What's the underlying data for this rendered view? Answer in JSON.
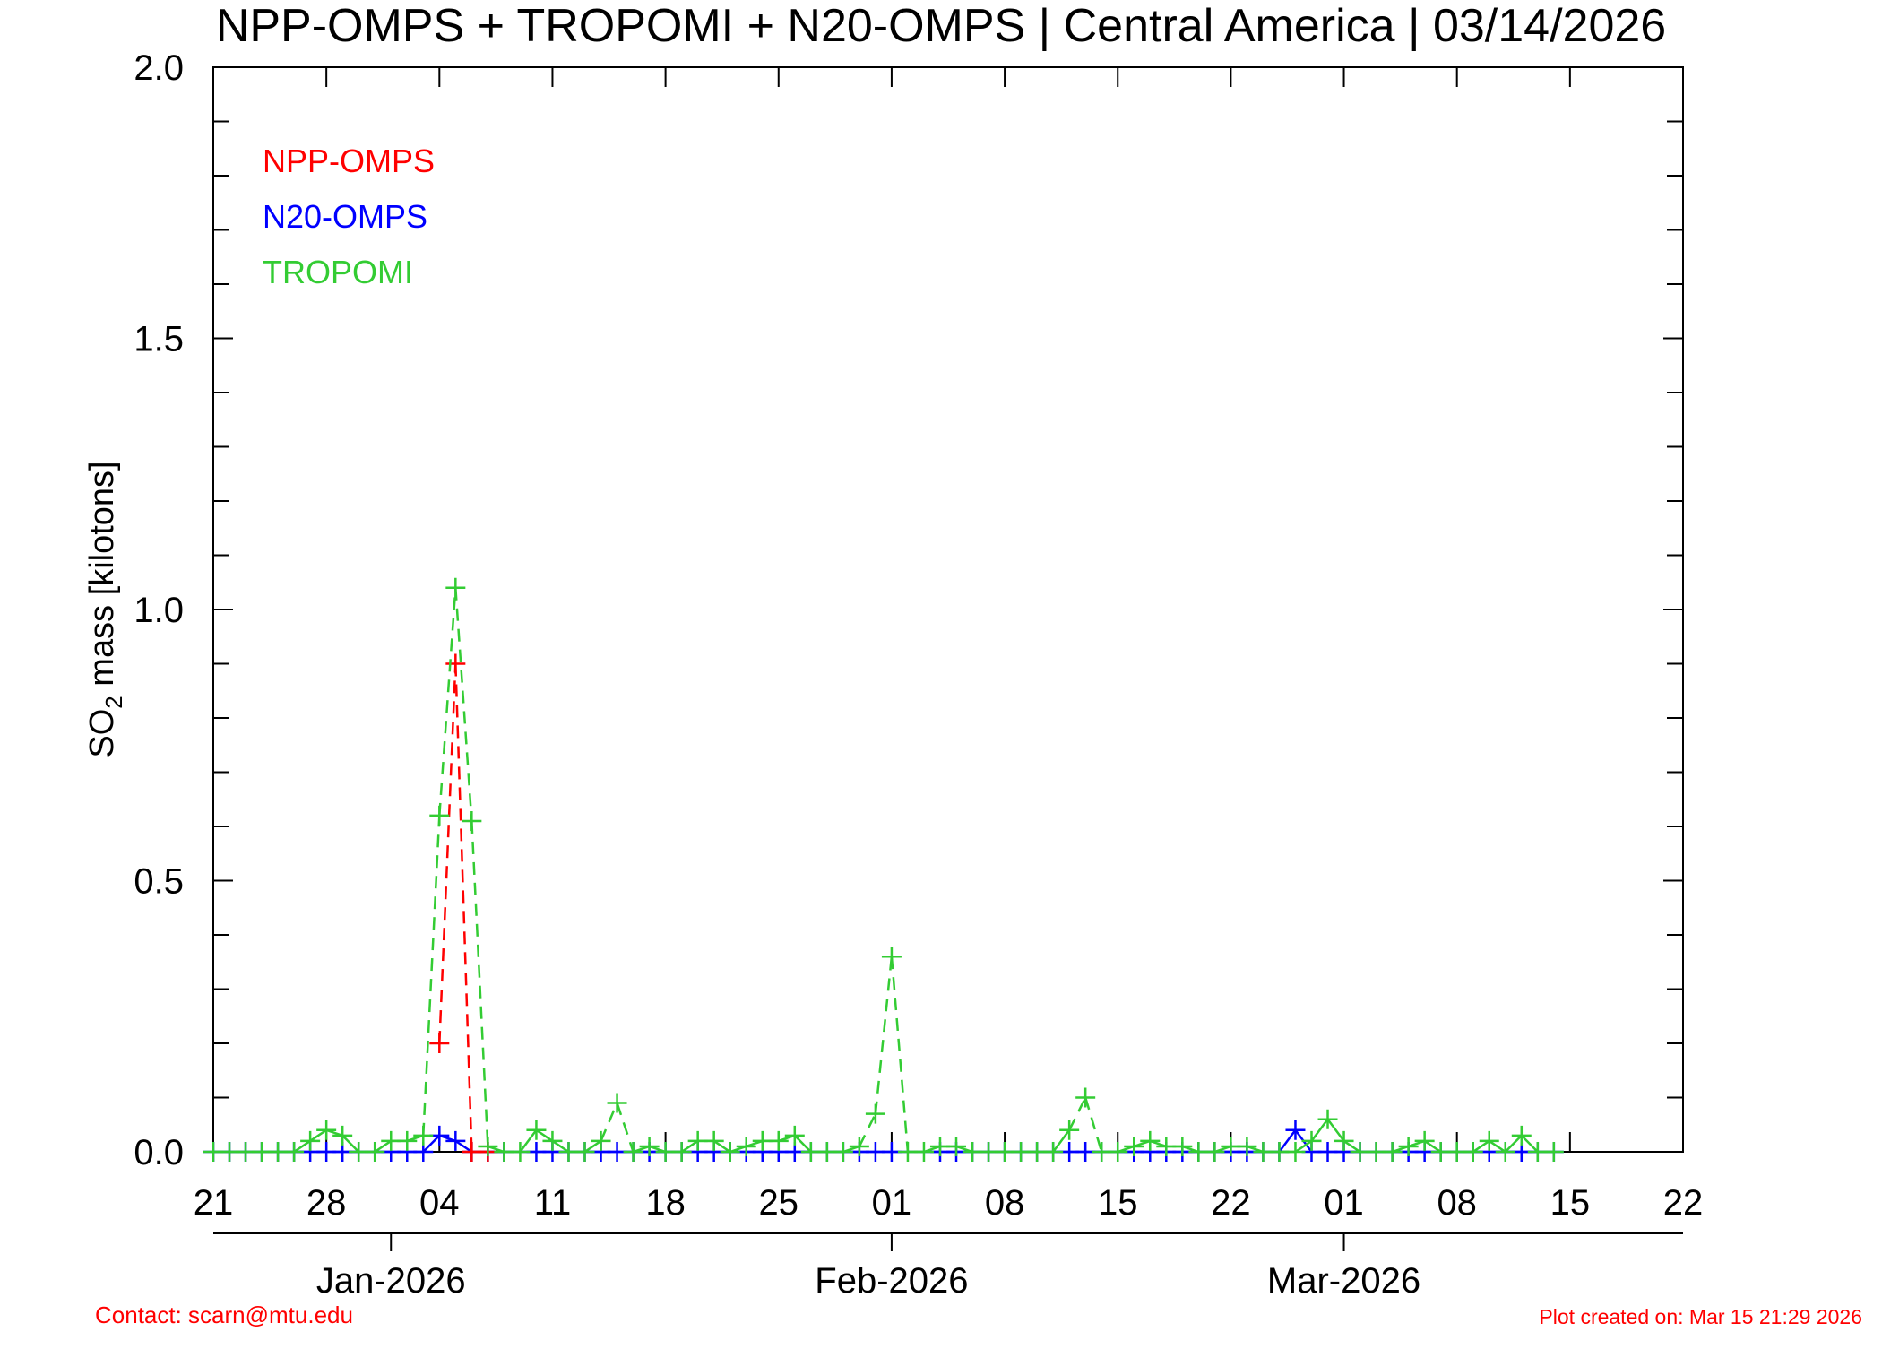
{
  "chart_data": {
    "type": "line",
    "title": "NPP-OMPS + TROPOMI + N20-OMPS | Central America | 03/14/2026",
    "ylabel_prefix": "SO",
    "ylabel_sub": "2",
    "ylabel_suffix": " mass [kilotons]",
    "ylim": [
      0.0,
      2.0
    ],
    "xlim": [
      "2025-12-21",
      "2026-03-22"
    ],
    "yticks": [
      {
        "value": 0.0,
        "label": "0.0"
      },
      {
        "value": 0.5,
        "label": "0.5"
      },
      {
        "value": 1.0,
        "label": "1.0"
      },
      {
        "value": 1.5,
        "label": "1.5"
      },
      {
        "value": 2.0,
        "label": "2.0"
      }
    ],
    "xticks": [
      {
        "date": "2025-12-21",
        "label": "21"
      },
      {
        "date": "2025-12-28",
        "label": "28"
      },
      {
        "date": "2026-01-04",
        "label": "04"
      },
      {
        "date": "2026-01-11",
        "label": "11"
      },
      {
        "date": "2026-01-18",
        "label": "18"
      },
      {
        "date": "2026-01-25",
        "label": "25"
      },
      {
        "date": "2026-02-01",
        "label": "01"
      },
      {
        "date": "2026-02-08",
        "label": "08"
      },
      {
        "date": "2026-02-15",
        "label": "15"
      },
      {
        "date": "2026-02-22",
        "label": "22"
      },
      {
        "date": "2026-03-01",
        "label": "01"
      },
      {
        "date": "2026-03-08",
        "label": "08"
      },
      {
        "date": "2026-03-15",
        "label": "15"
      },
      {
        "date": "2026-03-22",
        "label": "22"
      }
    ],
    "month_ticks": [
      {
        "date": "2026-01-01",
        "label": "Jan-2026"
      },
      {
        "date": "2026-02-01",
        "label": "Feb-2026"
      },
      {
        "date": "2026-03-01",
        "label": "Mar-2026"
      }
    ],
    "legend_position": "top-left",
    "grid": false,
    "series": [
      {
        "name": "NPP-OMPS",
        "color": "#ff0000",
        "points": [
          {
            "x": "2026-01-04",
            "y": 0.2
          },
          {
            "x": "2026-01-05",
            "y": 0.9
          },
          {
            "x": "2026-01-06",
            "y": 0.0
          },
          {
            "x": "2026-01-07",
            "y": 0.0
          }
        ]
      },
      {
        "name": "N20-OMPS",
        "color": "#0000ff",
        "points": [
          {
            "x": "2025-12-21",
            "y": 0.0
          },
          {
            "x": "2025-12-22",
            "y": 0.0
          },
          {
            "x": "2025-12-23",
            "y": 0.0
          },
          {
            "x": "2025-12-24",
            "y": 0.0
          },
          {
            "x": "2025-12-25",
            "y": 0.0
          },
          {
            "x": "2025-12-26",
            "y": 0.0
          },
          {
            "x": "2025-12-27",
            "y": 0.0
          },
          {
            "x": "2025-12-28",
            "y": 0.0
          },
          {
            "x": "2025-12-29",
            "y": 0.0
          },
          {
            "x": "2025-12-30",
            "y": 0.0
          },
          {
            "x": "2025-12-31",
            "y": 0.0
          },
          {
            "x": "2026-01-01",
            "y": 0.0
          },
          {
            "x": "2026-01-02",
            "y": 0.0
          },
          {
            "x": "2026-01-03",
            "y": 0.0
          },
          {
            "x": "2026-01-04",
            "y": 0.03
          },
          {
            "x": "2026-01-05",
            "y": 0.02
          },
          {
            "x": "2026-01-06",
            "y": 0.0
          },
          {
            "x": "2026-01-07",
            "y": 0.0
          },
          {
            "x": "2026-01-08",
            "y": 0.0
          },
          {
            "x": "2026-01-10",
            "y": 0.0
          },
          {
            "x": "2026-01-11",
            "y": 0.0
          },
          {
            "x": "2026-01-12",
            "y": 0.0
          },
          {
            "x": "2026-01-13",
            "y": 0.0
          },
          {
            "x": "2026-01-14",
            "y": 0.0
          },
          {
            "x": "2026-01-15",
            "y": 0.0
          },
          {
            "x": "2026-01-16",
            "y": 0.0
          },
          {
            "x": "2026-01-17",
            "y": 0.0
          },
          {
            "x": "2026-01-18",
            "y": 0.0
          },
          {
            "x": "2026-01-19",
            "y": 0.0
          },
          {
            "x": "2026-01-20",
            "y": 0.0
          },
          {
            "x": "2026-01-21",
            "y": 0.0
          },
          {
            "x": "2026-01-22",
            "y": 0.0
          },
          {
            "x": "2026-01-23",
            "y": 0.0
          },
          {
            "x": "2026-01-24",
            "y": 0.0
          },
          {
            "x": "2026-01-25",
            "y": 0.0
          },
          {
            "x": "2026-01-26",
            "y": 0.0
          },
          {
            "x": "2026-01-27",
            "y": 0.0
          },
          {
            "x": "2026-01-28",
            "y": 0.0
          },
          {
            "x": "2026-01-29",
            "y": 0.0
          },
          {
            "x": "2026-01-30",
            "y": 0.0
          },
          {
            "x": "2026-01-31",
            "y": 0.0
          },
          {
            "x": "2026-02-01",
            "y": 0.0
          },
          {
            "x": "2026-02-04",
            "y": 0.0
          },
          {
            "x": "2026-02-05",
            "y": 0.0
          },
          {
            "x": "2026-02-06",
            "y": 0.0
          },
          {
            "x": "2026-02-07",
            "y": 0.0
          },
          {
            "x": "2026-02-08",
            "y": 0.0
          },
          {
            "x": "2026-02-09",
            "y": 0.0
          },
          {
            "x": "2026-02-10",
            "y": 0.0
          },
          {
            "x": "2026-02-11",
            "y": 0.0
          },
          {
            "x": "2026-02-12",
            "y": 0.0
          },
          {
            "x": "2026-02-13",
            "y": 0.0
          },
          {
            "x": "2026-02-14",
            "y": 0.0
          },
          {
            "x": "2026-02-15",
            "y": 0.0
          },
          {
            "x": "2026-02-16",
            "y": 0.0
          },
          {
            "x": "2026-02-17",
            "y": 0.0
          },
          {
            "x": "2026-02-18",
            "y": 0.0
          },
          {
            "x": "2026-02-19",
            "y": 0.0
          },
          {
            "x": "2026-02-20",
            "y": 0.0
          },
          {
            "x": "2026-02-21",
            "y": 0.0
          },
          {
            "x": "2026-02-22",
            "y": 0.0
          },
          {
            "x": "2026-02-23",
            "y": 0.0
          },
          {
            "x": "2026-02-24",
            "y": 0.0
          },
          {
            "x": "2026-02-25",
            "y": 0.0
          },
          {
            "x": "2026-02-26",
            "y": 0.04
          },
          {
            "x": "2026-02-27",
            "y": 0.0
          },
          {
            "x": "2026-02-28",
            "y": 0.0
          },
          {
            "x": "2026-03-01",
            "y": 0.0
          },
          {
            "x": "2026-03-02",
            "y": 0.0
          },
          {
            "x": "2026-03-03",
            "y": 0.0
          },
          {
            "x": "2026-03-04",
            "y": 0.0
          },
          {
            "x": "2026-03-05",
            "y": 0.0
          },
          {
            "x": "2026-03-06",
            "y": 0.0
          },
          {
            "x": "2026-03-07",
            "y": 0.0
          },
          {
            "x": "2026-03-08",
            "y": 0.0
          },
          {
            "x": "2026-03-09",
            "y": 0.0
          },
          {
            "x": "2026-03-10",
            "y": 0.0
          },
          {
            "x": "2026-03-11",
            "y": 0.0
          },
          {
            "x": "2026-03-12",
            "y": 0.0
          },
          {
            "x": "2026-03-13",
            "y": 0.0
          },
          {
            "x": "2026-03-14",
            "y": 0.0
          }
        ]
      },
      {
        "name": "TROPOMI",
        "color": "#33cc33",
        "points": [
          {
            "x": "2025-12-21",
            "y": 0.0
          },
          {
            "x": "2025-12-22",
            "y": 0.0
          },
          {
            "x": "2025-12-23",
            "y": 0.0
          },
          {
            "x": "2025-12-24",
            "y": 0.0
          },
          {
            "x": "2025-12-25",
            "y": 0.0
          },
          {
            "x": "2025-12-26",
            "y": 0.0
          },
          {
            "x": "2025-12-27",
            "y": 0.02
          },
          {
            "x": "2025-12-28",
            "y": 0.04
          },
          {
            "x": "2025-12-29",
            "y": 0.03
          },
          {
            "x": "2025-12-30",
            "y": 0.0
          },
          {
            "x": "2025-12-31",
            "y": 0.0
          },
          {
            "x": "2026-01-01",
            "y": 0.02
          },
          {
            "x": "2026-01-02",
            "y": 0.02
          },
          {
            "x": "2026-01-03",
            "y": 0.03
          },
          {
            "x": "2026-01-04",
            "y": 0.62
          },
          {
            "x": "2026-01-05",
            "y": 1.04
          },
          {
            "x": "2026-01-06",
            "y": 0.61
          },
          {
            "x": "2026-01-07",
            "y": 0.01
          },
          {
            "x": "2026-01-08",
            "y": 0.0
          },
          {
            "x": "2026-01-09",
            "y": 0.0
          },
          {
            "x": "2026-01-10",
            "y": 0.04
          },
          {
            "x": "2026-01-11",
            "y": 0.02
          },
          {
            "x": "2026-01-12",
            "y": 0.0
          },
          {
            "x": "2026-01-13",
            "y": 0.0
          },
          {
            "x": "2026-01-14",
            "y": 0.02
          },
          {
            "x": "2026-01-15",
            "y": 0.09
          },
          {
            "x": "2026-01-16",
            "y": 0.0
          },
          {
            "x": "2026-01-17",
            "y": 0.01
          },
          {
            "x": "2026-01-18",
            "y": 0.0
          },
          {
            "x": "2026-01-19",
            "y": 0.0
          },
          {
            "x": "2026-01-20",
            "y": 0.02
          },
          {
            "x": "2026-01-21",
            "y": 0.02
          },
          {
            "x": "2026-01-22",
            "y": 0.0
          },
          {
            "x": "2026-01-23",
            "y": 0.01
          },
          {
            "x": "2026-01-24",
            "y": 0.02
          },
          {
            "x": "2026-01-25",
            "y": 0.02
          },
          {
            "x": "2026-01-26",
            "y": 0.03
          },
          {
            "x": "2026-01-27",
            "y": 0.0
          },
          {
            "x": "2026-01-28",
            "y": 0.0
          },
          {
            "x": "2026-01-29",
            "y": 0.0
          },
          {
            "x": "2026-01-30",
            "y": 0.01
          },
          {
            "x": "2026-01-31",
            "y": 0.07
          },
          {
            "x": "2026-02-01",
            "y": 0.36
          },
          {
            "x": "2026-02-02",
            "y": 0.0
          },
          {
            "x": "2026-02-03",
            "y": 0.0
          },
          {
            "x": "2026-02-04",
            "y": 0.01
          },
          {
            "x": "2026-02-05",
            "y": 0.01
          },
          {
            "x": "2026-02-06",
            "y": 0.0
          },
          {
            "x": "2026-02-07",
            "y": 0.0
          },
          {
            "x": "2026-02-08",
            "y": 0.0
          },
          {
            "x": "2026-02-09",
            "y": 0.0
          },
          {
            "x": "2026-02-10",
            "y": 0.0
          },
          {
            "x": "2026-02-11",
            "y": 0.0
          },
          {
            "x": "2026-02-12",
            "y": 0.04
          },
          {
            "x": "2026-02-13",
            "y": 0.1
          },
          {
            "x": "2026-02-14",
            "y": 0.0
          },
          {
            "x": "2026-02-15",
            "y": 0.0
          },
          {
            "x": "2026-02-16",
            "y": 0.01
          },
          {
            "x": "2026-02-17",
            "y": 0.02
          },
          {
            "x": "2026-02-18",
            "y": 0.01
          },
          {
            "x": "2026-02-19",
            "y": 0.01
          },
          {
            "x": "2026-02-20",
            "y": 0.0
          },
          {
            "x": "2026-02-21",
            "y": 0.0
          },
          {
            "x": "2026-02-22",
            "y": 0.01
          },
          {
            "x": "2026-02-23",
            "y": 0.01
          },
          {
            "x": "2026-02-24",
            "y": 0.0
          },
          {
            "x": "2026-02-25",
            "y": 0.0
          },
          {
            "x": "2026-02-26",
            "y": 0.0
          },
          {
            "x": "2026-02-27",
            "y": 0.02
          },
          {
            "x": "2026-02-28",
            "y": 0.06
          },
          {
            "x": "2026-03-01",
            "y": 0.02
          },
          {
            "x": "2026-03-02",
            "y": 0.0
          },
          {
            "x": "2026-03-03",
            "y": 0.0
          },
          {
            "x": "2026-03-04",
            "y": 0.0
          },
          {
            "x": "2026-03-05",
            "y": 0.01
          },
          {
            "x": "2026-03-06",
            "y": 0.02
          },
          {
            "x": "2026-03-07",
            "y": 0.0
          },
          {
            "x": "2026-03-08",
            "y": 0.0
          },
          {
            "x": "2026-03-09",
            "y": 0.0
          },
          {
            "x": "2026-03-10",
            "y": 0.02
          },
          {
            "x": "2026-03-11",
            "y": 0.0
          },
          {
            "x": "2026-03-12",
            "y": 0.03
          },
          {
            "x": "2026-03-13",
            "y": 0.0
          },
          {
            "x": "2026-03-14",
            "y": 0.0
          }
        ]
      }
    ]
  },
  "footer": {
    "contact": "Contact: scarn@mtu.edu",
    "created": "Plot created on: Mar 15 21:29 2026"
  }
}
